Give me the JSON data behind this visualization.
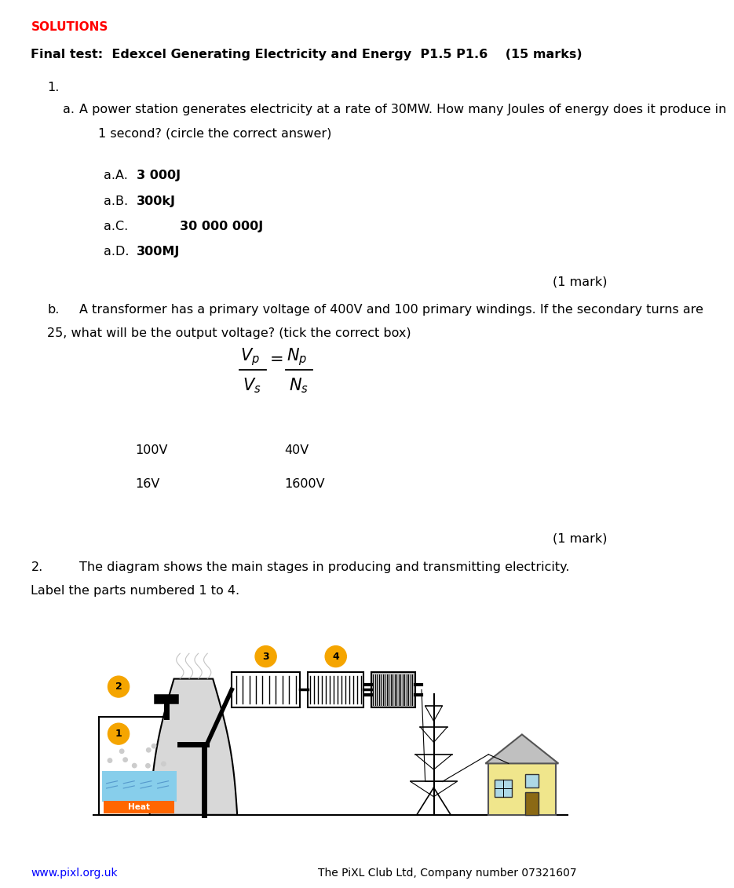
{
  "solutions_text": "SOLUTIONS",
  "solutions_color": "#FF0000",
  "title": "Final test:  Edexcel Generating Electricity and Energy  P1.5 P1.6    (15 marks)",
  "q1_label": "1.",
  "qa_label": "a.",
  "qa_text": "A power station generates electricity at a rate of 30MW. How many Joules of energy does it produce in",
  "qa_text2": "1 second? (circle the correct answer)",
  "opt_A_label": "a.A.",
  "opt_A_text": "3 000J",
  "opt_B_label": "a.B.",
  "opt_B_text": "300kJ",
  "opt_C_label": "a.C.",
  "opt_C_text": "30 000 000J",
  "opt_D_label": "a.D.",
  "opt_D_text": "300MJ",
  "mark1": "(1 mark)",
  "qb_label": "b.",
  "qb_text": "A transformer has a primary voltage of 400V and 100 primary windings. If the secondary turns are",
  "qb_text2": "25, what will be the output voltage? (tick the correct box)",
  "choice_100V": "100V",
  "choice_40V": "40V",
  "choice_16V": "16V",
  "choice_1600V": "1600V",
  "mark2": "(1 mark)",
  "q2_label": "2.",
  "q2_text": "The diagram shows the main stages in producing and transmitting electricity.",
  "q2_label_parts": "Label the parts numbered 1 to 4.",
  "footer_left": "www.pixl.org.uk",
  "footer_right": "The PiXL Club Ltd, Company number 07321607",
  "bg_color": "#FFFFFF",
  "circle_color": "#F5A500",
  "num1": "1",
  "num2": "2",
  "num3": "3",
  "num4": "4"
}
